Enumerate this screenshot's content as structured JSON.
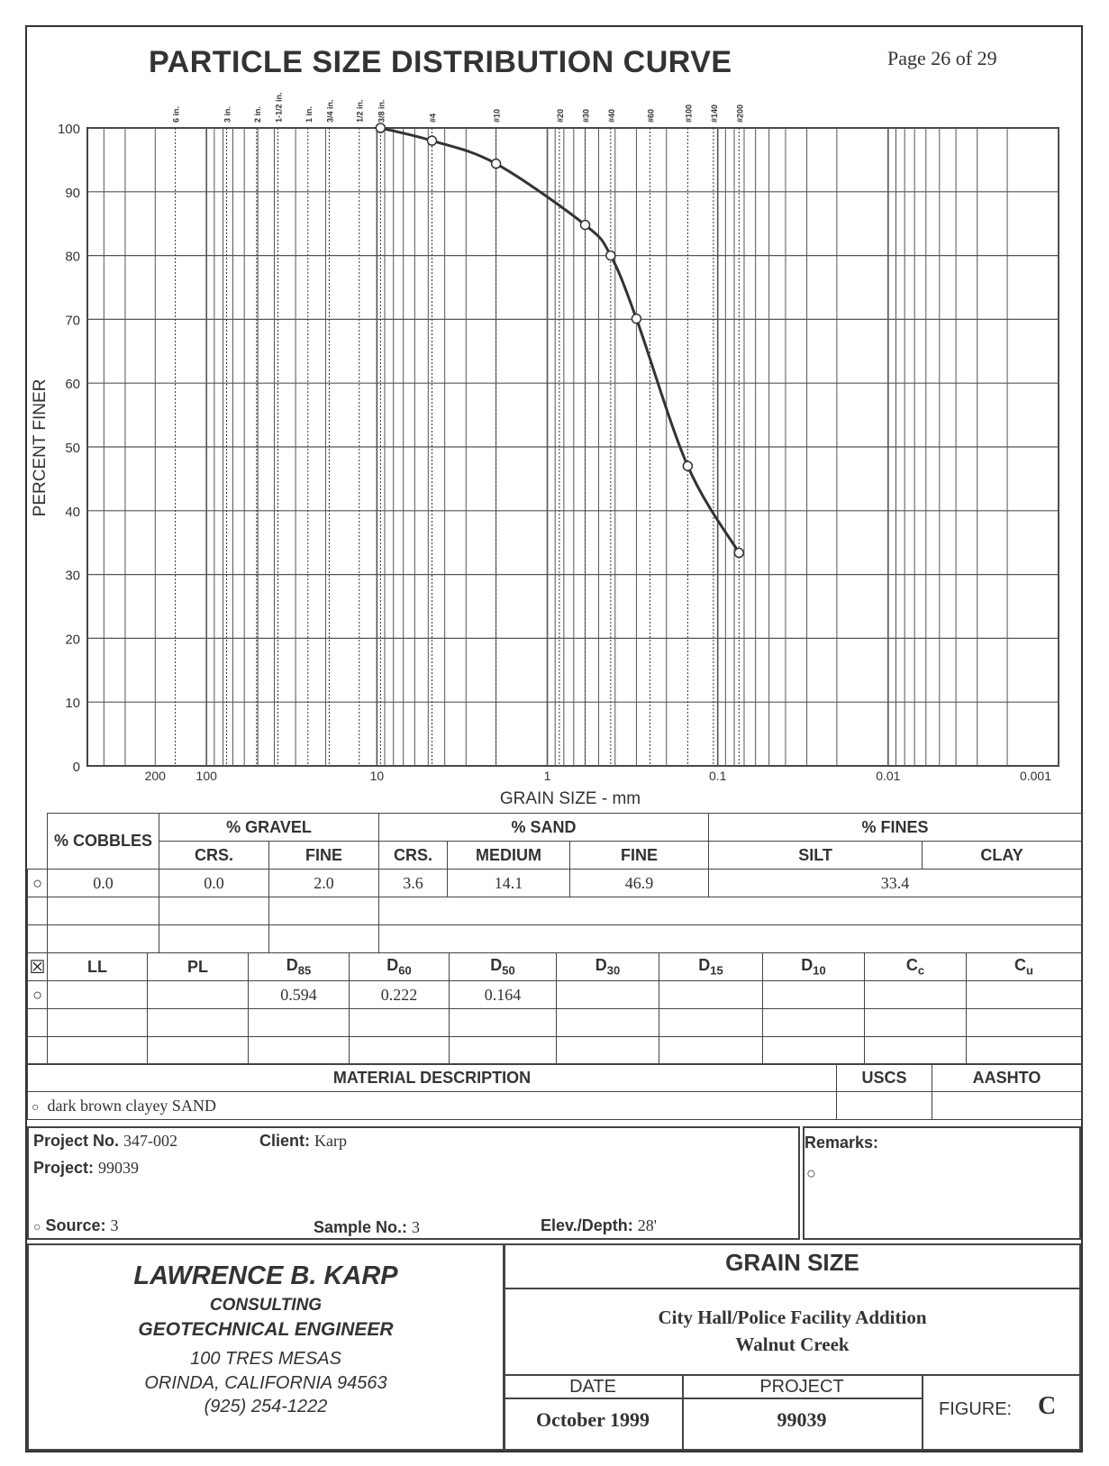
{
  "header": {
    "title": "PARTICLE SIZE DISTRIBUTION CURVE",
    "page": "Page 26 of 29"
  },
  "chart_data": {
    "type": "line",
    "title": "PARTICLE SIZE DISTRIBUTION CURVE",
    "xlabel": "GRAIN SIZE - mm",
    "ylabel": "PERCENT FINER",
    "x_scale": "log",
    "x_reversed": true,
    "xlim": [
      500,
      0.001
    ],
    "ylim": [
      0,
      100
    ],
    "x_tick_labels": [
      "200",
      "100",
      "10",
      "1",
      "0.1",
      "0.01",
      "0.001"
    ],
    "x_ticks": [
      200,
      100,
      10,
      1,
      0.1,
      0.01,
      0.001
    ],
    "y_ticks": [
      0,
      10,
      20,
      30,
      40,
      50,
      60,
      70,
      80,
      90,
      100
    ],
    "sieve_labels": [
      "6 in.",
      "3 in.",
      "2 in.",
      "1-1/2 in.",
      "1 in.",
      "3/4 in.",
      "1/2 in.",
      "3/8 in.",
      "#4",
      "#10",
      "#20",
      "#30",
      "#40",
      "#60",
      "#100",
      "#140",
      "#200"
    ],
    "sieve_sizes": [
      152.4,
      76.2,
      50.8,
      38.1,
      25.4,
      19.05,
      12.7,
      9.525,
      4.75,
      2.0,
      0.85,
      0.6,
      0.425,
      0.25,
      0.15,
      0.106,
      0.075
    ],
    "series": [
      {
        "x": [
          9.525,
          4.75,
          2.0,
          0.6,
          0.425,
          0.3,
          0.15,
          0.075
        ],
        "y": [
          100.0,
          98.0,
          94.4,
          84.8,
          80.0,
          70.1,
          47.0,
          33.4
        ]
      }
    ],
    "grid": true
  },
  "gradation": {
    "headers": {
      "cobbles": "% COBBLES",
      "gravel": "% GRAVEL",
      "sand": "% SAND",
      "fines": "% FINES",
      "crs": "CRS.",
      "fine": "FINE",
      "sand_crs": "CRS.",
      "medium": "MEDIUM",
      "sand_fine": "FINE",
      "silt": "SILT",
      "clay": "CLAY"
    },
    "row": {
      "symbol": "○",
      "cobbles": "0.0",
      "gravel_crs": "0.0",
      "gravel_fine": "2.0",
      "sand_crs": "3.6",
      "sand_medium": "14.1",
      "sand_fine": "46.9",
      "fines": "33.4"
    }
  },
  "properties": {
    "headers": {
      "symbol": "☒",
      "ll": "LL",
      "pl": "PL",
      "d85": "D",
      "d85_sub": "85",
      "d60": "D",
      "d60_sub": "60",
      "d50": "D",
      "d50_sub": "50",
      "d30": "D",
      "d30_sub": "30",
      "d15": "D",
      "d15_sub": "15",
      "d10": "D",
      "d10_sub": "10",
      "cc": "C",
      "cc_sub": "c",
      "cu": "C",
      "cu_sub": "u"
    },
    "row": {
      "symbol": "○",
      "d85": "0.594",
      "d60": "0.222",
      "d50": "0.164"
    }
  },
  "material": {
    "header": "MATERIAL DESCRIPTION",
    "uscs": "USCS",
    "aashto": "AASHTO",
    "symbol": "○",
    "description": "dark brown clayey SAND"
  },
  "project_info": {
    "project_no_label": "Project No.",
    "project_no": "347-002",
    "client_label": "Client:",
    "client": "Karp",
    "project_label": "Project:",
    "project": "99039",
    "source_symbol": "○",
    "source_label": "Source:",
    "source": "3",
    "sample_label": "Sample No.:",
    "sample": "3",
    "elev_label": "Elev./Depth:",
    "elev": "28'",
    "remarks_label": "Remarks:",
    "remarks_symbol": "○"
  },
  "footer": {
    "company": "LAWRENCE B. KARP",
    "line1": "CONSULTING",
    "line2": "GEOTECHNICAL ENGINEER",
    "address1": "100 TRES MESAS",
    "address2": "ORINDA, CALIFORNIA 94563",
    "phone": "(925) 254-1222",
    "report_title": "GRAIN SIZE",
    "site1": "City Hall/Police Facility Addition",
    "site2": "Walnut Creek",
    "date_label": "DATE",
    "date": "October 1999",
    "project_label": "PROJECT",
    "project": "99039",
    "figure_label": "FIGURE:",
    "figure": "C"
  }
}
